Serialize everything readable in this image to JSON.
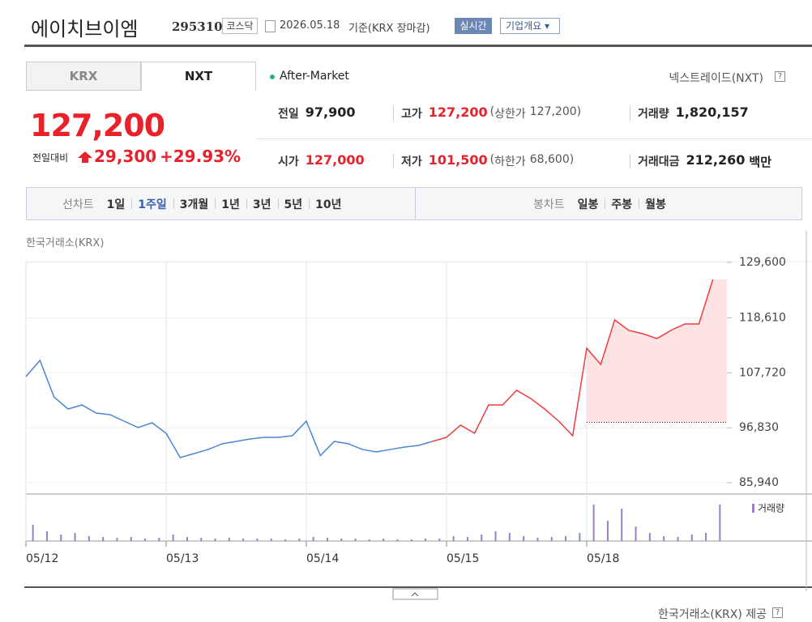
{
  "header": {
    "title": "에이치브이엠",
    "code": "295310",
    "market": "코스닥",
    "date": "2026.05.18",
    "basis": "기준(KRX 장마감)",
    "realtime": "실시간",
    "company_info": "기업개요"
  },
  "tabs": [
    "KRX",
    "NXT"
  ],
  "session": "After-Market",
  "exchange": "넥스트레이드(NXT)",
  "price": {
    "current": "127,200",
    "change_label": "전일대비",
    "change": "29,300",
    "change_rate": "+29.93%"
  },
  "stats": [
    {
      "label": "전일",
      "value": "97,900"
    },
    {
      "label": "고가",
      "value": "127,200",
      "note_label": "상한가",
      "note_value": "127,200"
    },
    {
      "label": "거래량",
      "value": "1,820,157"
    },
    {
      "label": "시가",
      "value": "127,000"
    },
    {
      "label": "저가",
      "value": "101,500",
      "note_label": "하한가",
      "note_value": "68,600"
    },
    {
      "label": "거래대금",
      "value": "212,260",
      "unit": "백만"
    }
  ],
  "periods": {
    "label": "선차트",
    "items": [
      "1일",
      "1주일",
      "3개월",
      "1년",
      "3년",
      "5년",
      "10년"
    ],
    "selected": 1
  },
  "candles": {
    "label": "봉차트",
    "items": [
      "일봉",
      "주봉",
      "월봉"
    ]
  },
  "chart_data": {
    "type": "line",
    "source": "한국거래소(KRX)",
    "categories": [
      "05/12",
      null,
      null,
      null,
      null,
      null,
      null,
      null,
      null,
      null,
      "05/13",
      null,
      null,
      null,
      null,
      null,
      null,
      null,
      null,
      null,
      "05/14",
      null,
      null,
      null,
      null,
      null,
      null,
      null,
      null,
      null,
      "05/15",
      null,
      null,
      null,
      null,
      null,
      null,
      null,
      null,
      null,
      "05/18",
      null,
      null,
      null,
      null,
      null,
      null,
      null,
      null,
      null
    ],
    "series": [
      {
        "color": "#4a86d4",
        "values": [
          106970,
          110180,
          102950,
          100550,
          101350,
          99750,
          99430,
          98140,
          96860,
          97820,
          95730,
          90920,
          91720,
          92530,
          93650,
          94130,
          94610,
          94930,
          94930,
          95250,
          98140,
          91320,
          94130,
          93650,
          92530,
          92040,
          92530,
          93000,
          93320,
          94130,
          null,
          null,
          null,
          null,
          null,
          null,
          null,
          null,
          null,
          null,
          null,
          null,
          null,
          null,
          null,
          null,
          null,
          null,
          null,
          null
        ]
      },
      {
        "color": "#f03c3c",
        "values": [
          null,
          null,
          null,
          null,
          null,
          null,
          null,
          null,
          null,
          null,
          null,
          null,
          null,
          null,
          null,
          null,
          null,
          null,
          null,
          null,
          null,
          null,
          null,
          null,
          null,
          null,
          null,
          null,
          null,
          94130,
          94930,
          97340,
          95730,
          101350,
          101350,
          104240,
          102640,
          100550,
          98140,
          95250,
          112590,
          109380,
          118210,
          116120,
          115480,
          114510,
          116120,
          117400,
          117400,
          126230
        ]
      }
    ],
    "reference_line": 97900,
    "ylim": [
      85940,
      129600
    ],
    "yticks": [
      {
        "value": 129600,
        "label": "129,600"
      },
      {
        "value": 118610,
        "label": "118,610"
      },
      {
        "value": 107720,
        "label": "107,720"
      },
      {
        "value": 96830,
        "label": "96,830"
      },
      {
        "value": 85940,
        "label": "85,940"
      }
    ],
    "grid": true,
    "volume": {
      "name": "거래량",
      "color": "#9a7fc7",
      "ylim": [
        0,
        50
      ],
      "values": [
        20,
        12,
        8,
        10,
        6,
        5,
        4,
        5,
        3,
        4,
        8,
        5,
        4,
        3,
        4,
        3,
        3,
        3,
        2,
        3,
        5,
        4,
        3,
        3,
        2,
        3,
        2,
        2,
        3,
        3,
        6,
        5,
        8,
        12,
        10,
        6,
        4,
        5,
        6,
        10,
        45,
        25,
        40,
        18,
        10,
        6,
        5,
        8,
        10,
        45
      ]
    }
  },
  "footer": "한국거래소(KRX) 제공"
}
